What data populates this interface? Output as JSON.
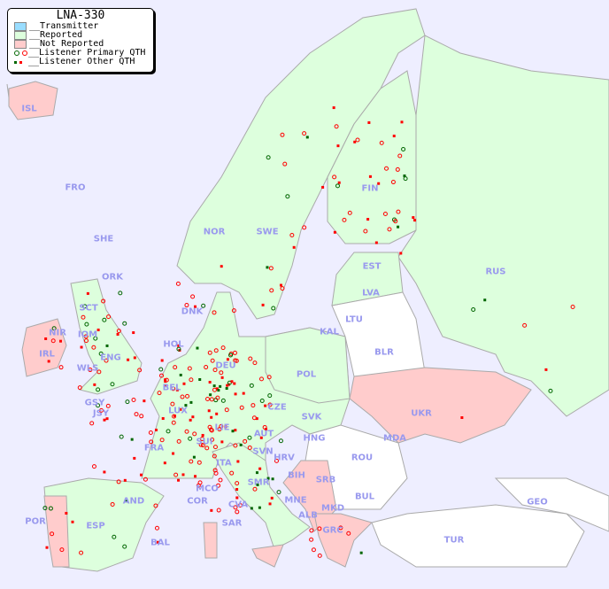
{
  "legend": {
    "title": "LNA-330",
    "items": [
      {
        "label": "__Transmitter",
        "color": "#99ddff"
      },
      {
        "label": "__Reported",
        "color": "#ddffdd"
      },
      {
        "label": "__Not Reported",
        "color": "#ffcccc"
      },
      {
        "label": "__Listener Primary QTH",
        "colors": [
          "#006600",
          "#ff0000"
        ]
      },
      {
        "label": "__Listener Other QTH",
        "colors": [
          "#006600",
          "#ff0000"
        ]
      }
    ]
  },
  "countries": [
    "ISL",
    "FRO",
    "SHE",
    "ORK",
    "NOR",
    "SWE",
    "FIN",
    "EST",
    "LVA",
    "LTU",
    "KAL",
    "BLR",
    "RUS",
    "UKR",
    "MDA",
    "ROU",
    "BUL",
    "GEO",
    "TUR",
    "GRC",
    "MKD",
    "ALB",
    "MNE",
    "SRB",
    "BIH",
    "HNG",
    "SVK",
    "CZE",
    "AUT",
    "POL",
    "DEU",
    "DNK",
    "HOL",
    "BEL",
    "LUX",
    "FRA",
    "SUI",
    "LIE",
    "ITA",
    "SMR",
    "COR",
    "MCO",
    "SAR",
    "CVA",
    "AND",
    "ESP",
    "POR",
    "BAL",
    "IRL",
    "WLS",
    "ENG",
    "IOM",
    "NIR",
    "SCT",
    "GSY",
    "JSY",
    "SVN",
    "HRV"
  ],
  "colors": {
    "sea": "#eeeeff",
    "reported": "#ddffdd",
    "not_reported": "#ffcccc",
    "unlisted": "#ffffff",
    "label": "#9999ee"
  }
}
